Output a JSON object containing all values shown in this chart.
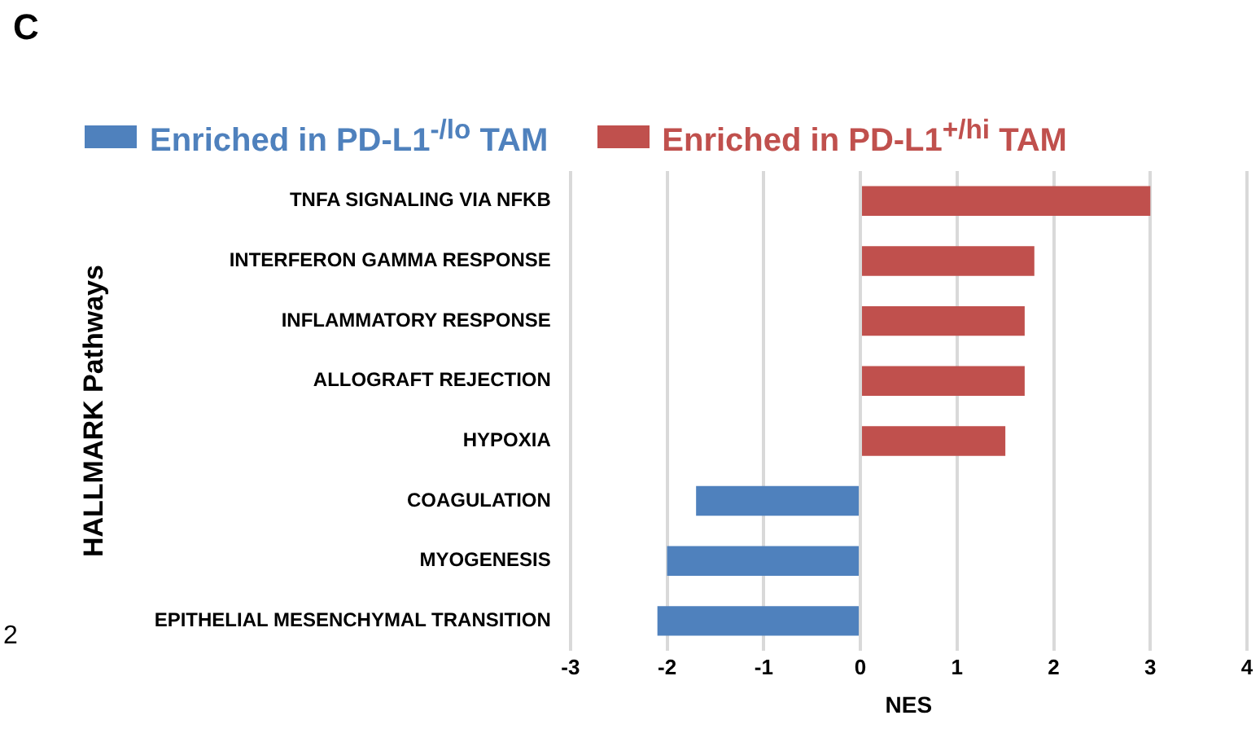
{
  "chart_data": {
    "type": "bar",
    "orientation": "horizontal",
    "title": "C",
    "xlabel": "NES",
    "ylabel": "HALLMARK Pathways",
    "categories": [
      "TNFA SIGNALING VIA NFKB",
      "INTERFERON GAMMA RESPONSE",
      "INFLAMMATORY RESPONSE",
      "ALLOGRAFT REJECTION",
      "HYPOXIA",
      "COAGULATION",
      "MYOGENESIS",
      "EPITHELIAL MESENCHYMAL TRANSITION"
    ],
    "series": [
      {
        "name": "Enriched in PD-L1$^{-/lo}$ TAM",
        "color": "#4f81bd",
        "values": [
          null,
          null,
          null,
          null,
          null,
          -1.7,
          -2.0,
          -2.1
        ]
      },
      {
        "name": "Enriched in PD-L1$^{+/hi}$ TAM",
        "color": "#c0504d",
        "values": [
          3.0,
          1.8,
          1.7,
          1.7,
          1.5,
          null,
          null,
          null
        ]
      }
    ],
    "xlim": [
      -3,
      4
    ],
    "xticks": [
      -3,
      -2,
      -1,
      0,
      1,
      2,
      3,
      4
    ],
    "grid": "x",
    "legend": "top",
    "annotations": [
      "2"
    ]
  }
}
